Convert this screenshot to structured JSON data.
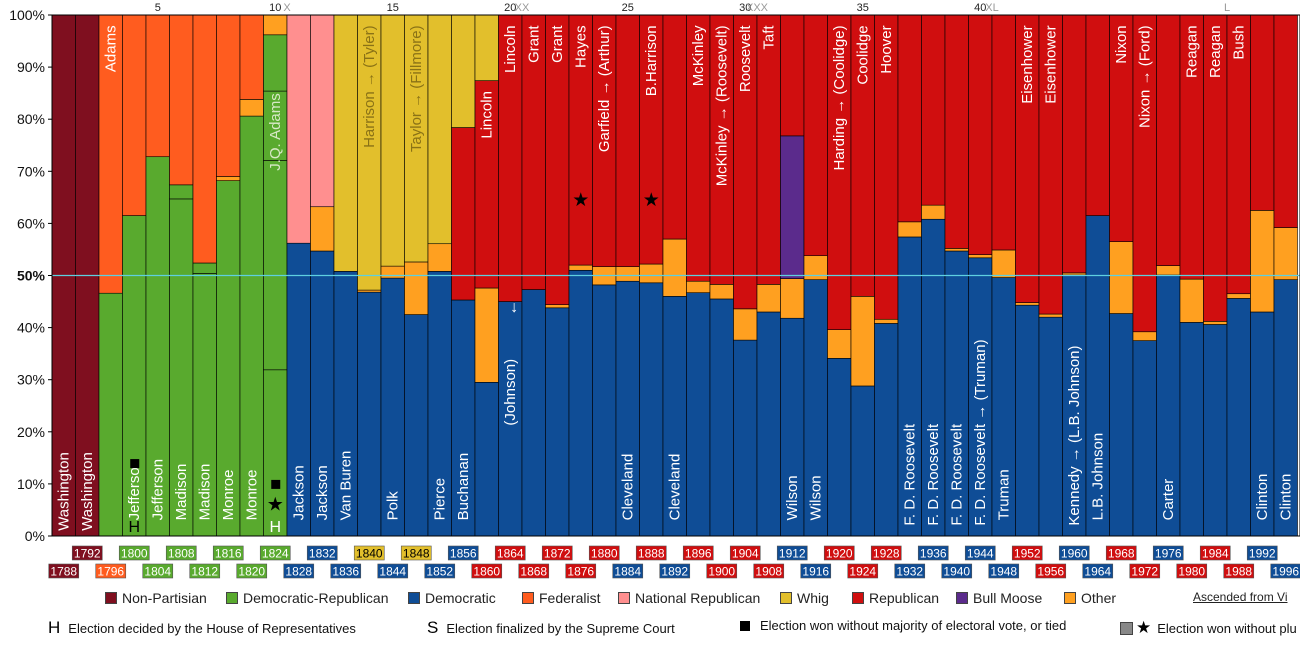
{
  "chart_data": {
    "type": "stacked-bar",
    "title": "",
    "xlabel": "",
    "ylabel": "",
    "ylim": [
      0,
      100
    ],
    "y_ticks": [
      "0%",
      "10%",
      "20%",
      "30%",
      "40%",
      "50%",
      "60%",
      "70%",
      "80%",
      "90%",
      "100%"
    ],
    "party_colors": {
      "NP": "#7f0f1f",
      "DR": "#59aa2e",
      "D": "#0f4d96",
      "F": "#ff5c1f",
      "NR": "#ff8f8f",
      "W": "#e2bf2c",
      "R": "#d00e0f",
      "BM": "#5b2b8c",
      "O": "#ffa020"
    },
    "top_numbers": [
      {
        "i": 4,
        "label": "5"
      },
      {
        "i": 9,
        "label": "10"
      },
      {
        "i": 14,
        "label": "15"
      },
      {
        "i": 19,
        "label": "20"
      },
      {
        "i": 24,
        "label": "25"
      },
      {
        "i": 29,
        "label": "30"
      },
      {
        "i": 34,
        "label": "35"
      },
      {
        "i": 39,
        "label": "40"
      }
    ],
    "top_roman": [
      {
        "i": 9.5,
        "label": "X"
      },
      {
        "i": 19.5,
        "label": "XX"
      },
      {
        "i": 29.5,
        "label": "XXX"
      },
      {
        "i": 39.5,
        "label": "XL"
      },
      {
        "i": 49.5,
        "label": "L"
      }
    ],
    "bars": [
      {
        "year": "1788",
        "w": "NP",
        "name": "Washington",
        "segs": [
          [
            "NP",
            100
          ]
        ]
      },
      {
        "year": "1792",
        "w": "NP",
        "name": "Washington",
        "segs": [
          [
            "NP",
            100
          ]
        ]
      },
      {
        "year": "1796",
        "w": "F",
        "name": "Adams",
        "segs": [
          [
            "DR",
            46.6
          ],
          [
            "F",
            53.4
          ]
        ]
      },
      {
        "year": "1800",
        "w": "DR",
        "name": "Jefferson",
        "mark": "square",
        "h": "H",
        "segs": [
          [
            "DR",
            61.5
          ],
          [
            "F",
            38.5
          ]
        ]
      },
      {
        "year": "1804",
        "w": "DR",
        "name": "Jefferson",
        "segs": [
          [
            "DR",
            72.8
          ],
          [
            "F",
            27.2
          ]
        ]
      },
      {
        "year": "1808",
        "w": "DR",
        "name": "Madison",
        "segs": [
          [
            "DR",
            64.7
          ],
          [
            "DR",
            2.7
          ],
          [
            "F",
            32.6
          ]
        ]
      },
      {
        "year": "1812",
        "w": "DR",
        "name": "Madison",
        "segs": [
          [
            "DR",
            50.4
          ],
          [
            "DR",
            2
          ],
          [
            "F",
            47.6
          ]
        ]
      },
      {
        "year": "1816",
        "w": "DR",
        "name": "Monroe",
        "segs": [
          [
            "DR",
            68.2
          ],
          [
            "O",
            0.8
          ],
          [
            "F",
            31
          ]
        ]
      },
      {
        "year": "1820",
        "w": "DR",
        "name": "Monroe",
        "segs": [
          [
            "DR",
            80.6
          ],
          [
            "O",
            3.2
          ],
          [
            "F",
            16.2
          ]
        ]
      },
      {
        "year": "1824",
        "w": "DR",
        "name": "J.Q. Adams",
        "mark": "square",
        "star": true,
        "h": "H",
        "segs": [
          [
            "DR",
            31.9
          ],
          [
            "DR",
            40.2
          ],
          [
            "DR",
            13.3
          ],
          [
            "DR",
            10.8
          ],
          [
            "O",
            3.8
          ]
        ]
      },
      {
        "year": "1828",
        "w": "D",
        "name": "Jackson",
        "segs": [
          [
            "D",
            56.2
          ],
          [
            "NR",
            43.8
          ]
        ]
      },
      {
        "year": "1832",
        "w": "D",
        "name": "Jackson",
        "segs": [
          [
            "D",
            54.7
          ],
          [
            "O",
            8.5
          ],
          [
            "NR",
            36.8
          ]
        ]
      },
      {
        "year": "1836",
        "w": "D",
        "name": "Van Buren",
        "segs": [
          [
            "D",
            50.8
          ],
          [
            "W",
            49.2
          ]
        ]
      },
      {
        "year": "1840",
        "w": "W",
        "name": "Harrison → (Tyler)",
        "segs": [
          [
            "D",
            46.8
          ],
          [
            "O",
            0.4
          ],
          [
            "W",
            52.8
          ]
        ]
      },
      {
        "year": "1844",
        "w": "D",
        "name": "Polk",
        "segs": [
          [
            "D",
            49.5
          ],
          [
            "O",
            2.3
          ],
          [
            "W",
            48.2
          ]
        ]
      },
      {
        "year": "1848",
        "w": "W",
        "name": "Taylor → (Fillmore)",
        "segs": [
          [
            "D",
            42.5
          ],
          [
            "O",
            10.1
          ],
          [
            "W",
            47.4
          ]
        ]
      },
      {
        "year": "1852",
        "w": "D",
        "name": "Pierce",
        "segs": [
          [
            "D",
            50.8
          ],
          [
            "O",
            5.3
          ],
          [
            "W",
            43.9
          ]
        ]
      },
      {
        "year": "1856",
        "w": "D",
        "name": "Buchanan",
        "segs": [
          [
            "D",
            45.3
          ],
          [
            "R",
            33.1
          ],
          [
            "W",
            21.6
          ]
        ]
      },
      {
        "year": "1860",
        "w": "R",
        "name": "Lincoln",
        "segs": [
          [
            "D",
            29.5
          ],
          [
            "O",
            18.1
          ],
          [
            "R",
            39.8
          ],
          [
            "W",
            12.6
          ]
        ]
      },
      {
        "year": "1864",
        "w": "R",
        "name": "Lincoln",
        "name2": "↓",
        "name3": "(Johnson)",
        "segs": [
          [
            "D",
            45
          ],
          [
            "R",
            55
          ]
        ]
      },
      {
        "year": "1868",
        "w": "R",
        "name": "Grant",
        "segs": [
          [
            "D",
            47.3
          ],
          [
            "R",
            52.7
          ]
        ]
      },
      {
        "year": "1872",
        "w": "R",
        "name": "Grant",
        "segs": [
          [
            "D",
            43.8
          ],
          [
            "O",
            0.6
          ],
          [
            "R",
            55.6
          ]
        ]
      },
      {
        "year": "1876",
        "w": "R",
        "name": "Hayes",
        "star": true,
        "segs": [
          [
            "D",
            51
          ],
          [
            "O",
            1
          ],
          [
            "R",
            48
          ]
        ]
      },
      {
        "year": "1880",
        "w": "R",
        "name": "Garfield → (Arthur)",
        "segs": [
          [
            "D",
            48.2
          ],
          [
            "O",
            3.5
          ],
          [
            "R",
            48.3
          ]
        ]
      },
      {
        "year": "1884",
        "w": "D",
        "name": "Cleveland",
        "segs": [
          [
            "D",
            48.9
          ],
          [
            "O",
            2.8
          ],
          [
            "R",
            48.3
          ]
        ]
      },
      {
        "year": "1888",
        "w": "R",
        "name": "B.Harrison",
        "star": true,
        "segs": [
          [
            "D",
            48.6
          ],
          [
            "O",
            3.6
          ],
          [
            "R",
            47.8
          ]
        ]
      },
      {
        "year": "1892",
        "w": "D",
        "name": "Cleveland",
        "segs": [
          [
            "D",
            46
          ],
          [
            "O",
            11
          ],
          [
            "R",
            43
          ]
        ]
      },
      {
        "year": "1896",
        "w": "R",
        "name": "McKinley",
        "segs": [
          [
            "D",
            46.7
          ],
          [
            "O",
            2.2
          ],
          [
            "R",
            51.1
          ]
        ]
      },
      {
        "year": "1900",
        "w": "R",
        "name": "McKinley → (Roosevelt)",
        "segs": [
          [
            "D",
            45.5
          ],
          [
            "O",
            2.8
          ],
          [
            "R",
            51.7
          ]
        ]
      },
      {
        "year": "1904",
        "w": "R",
        "name": "Roosevelt",
        "segs": [
          [
            "D",
            37.6
          ],
          [
            "O",
            6
          ],
          [
            "R",
            56.4
          ]
        ]
      },
      {
        "year": "1908",
        "w": "R",
        "name": "Taft",
        "segs": [
          [
            "D",
            43
          ],
          [
            "O",
            5.3
          ],
          [
            "R",
            51.7
          ]
        ]
      },
      {
        "year": "1912",
        "w": "D",
        "name": "Wilson",
        "segs": [
          [
            "D",
            41.8
          ],
          [
            "O",
            7.6
          ],
          [
            "BM",
            27.4
          ],
          [
            "R",
            23.2
          ]
        ]
      },
      {
        "year": "1916",
        "w": "D",
        "name": "Wilson",
        "segs": [
          [
            "D",
            49.2
          ],
          [
            "O",
            4.6
          ],
          [
            "R",
            46.2
          ]
        ]
      },
      {
        "year": "1920",
        "w": "R",
        "name": "Harding → (Coolidge)",
        "segs": [
          [
            "D",
            34.1
          ],
          [
            "O",
            5.5
          ],
          [
            "R",
            60.4
          ]
        ]
      },
      {
        "year": "1924",
        "w": "R",
        "name": "Coolidge",
        "segs": [
          [
            "D",
            28.8
          ],
          [
            "O",
            17.2
          ],
          [
            "R",
            54
          ]
        ]
      },
      {
        "year": "1928",
        "w": "R",
        "name": "Hoover",
        "segs": [
          [
            "D",
            40.8
          ],
          [
            "O",
            0.8
          ],
          [
            "R",
            58.4
          ]
        ]
      },
      {
        "year": "1932",
        "w": "D",
        "name": "F. D. Roosevelt",
        "segs": [
          [
            "D",
            57.4
          ],
          [
            "O",
            2.9
          ],
          [
            "R",
            39.7
          ]
        ]
      },
      {
        "year": "1936",
        "w": "D",
        "name": "F. D. Roosevelt",
        "segs": [
          [
            "D",
            60.8
          ],
          [
            "O",
            2.7
          ],
          [
            "R",
            36.5
          ]
        ]
      },
      {
        "year": "1940",
        "w": "D",
        "name": "F. D. Roosevelt",
        "segs": [
          [
            "D",
            54.7
          ],
          [
            "O",
            0.5
          ],
          [
            "R",
            44.8
          ]
        ]
      },
      {
        "year": "1944",
        "w": "D",
        "name": "F. D. Roosevelt → (Truman)",
        "segs": [
          [
            "D",
            53.4
          ],
          [
            "O",
            0.6
          ],
          [
            "R",
            46
          ]
        ]
      },
      {
        "year": "1948",
        "w": "D",
        "name": "Truman",
        "segs": [
          [
            "D",
            49.6
          ],
          [
            "O",
            5.3
          ],
          [
            "R",
            45.1
          ]
        ]
      },
      {
        "year": "1952",
        "w": "R",
        "name": "Eisenhower",
        "segs": [
          [
            "D",
            44.3
          ],
          [
            "O",
            0.5
          ],
          [
            "R",
            55.2
          ]
        ]
      },
      {
        "year": "1956",
        "w": "R",
        "name": "Eisenhower",
        "segs": [
          [
            "D",
            42
          ],
          [
            "O",
            0.6
          ],
          [
            "R",
            57.4
          ]
        ]
      },
      {
        "year": "1960",
        "w": "D",
        "name": "Kennedy → (L.B. Johnson)",
        "segs": [
          [
            "D",
            50.1
          ],
          [
            "O",
            0.4
          ],
          [
            "R",
            49.5
          ]
        ]
      },
      {
        "year": "1964",
        "w": "D",
        "name": "L.B. Johnson",
        "segs": [
          [
            "D",
            61.5
          ],
          [
            "R",
            38.5
          ]
        ]
      },
      {
        "year": "1968",
        "w": "R",
        "name": "Nixon",
        "segs": [
          [
            "D",
            42.7
          ],
          [
            "O",
            13.8
          ],
          [
            "R",
            43.5
          ]
        ]
      },
      {
        "year": "1972",
        "w": "R",
        "name": "Nixon → (Ford)",
        "segs": [
          [
            "D",
            37.5
          ],
          [
            "O",
            1.7
          ],
          [
            "R",
            60.8
          ]
        ]
      },
      {
        "year": "1976",
        "w": "D",
        "name": "Carter",
        "segs": [
          [
            "D",
            50.1
          ],
          [
            "O",
            1.8
          ],
          [
            "R",
            48.1
          ]
        ]
      },
      {
        "year": "1980",
        "w": "R",
        "name": "Reagan",
        "segs": [
          [
            "D",
            41
          ],
          [
            "O",
            8.3
          ],
          [
            "R",
            50.7
          ]
        ]
      },
      {
        "year": "1984",
        "w": "R",
        "name": "Reagan",
        "segs": [
          [
            "D",
            40.6
          ],
          [
            "O",
            0.6
          ],
          [
            "R",
            58.8
          ]
        ]
      },
      {
        "year": "1988",
        "w": "R",
        "name": "Bush",
        "segs": [
          [
            "D",
            45.6
          ],
          [
            "O",
            0.9
          ],
          [
            "R",
            53.5
          ]
        ]
      },
      {
        "year": "1992",
        "w": "D",
        "name": "Clinton",
        "segs": [
          [
            "D",
            43
          ],
          [
            "O",
            19.5
          ],
          [
            "R",
            37.5
          ]
        ]
      },
      {
        "year": "1996",
        "w": "D",
        "name": "Clinton",
        "segs": [
          [
            "D",
            49.2
          ],
          [
            "O",
            10
          ],
          [
            "R",
            40.8
          ]
        ]
      }
    ]
  },
  "legend": {
    "items": [
      {
        "key": "NP",
        "label": "Non-Partisian",
        "color": "#7f0f1f"
      },
      {
        "key": "DR",
        "label": "Democratic-Republican",
        "color": "#59aa2e"
      },
      {
        "key": "D",
        "label": "Democratic",
        "color": "#0f4d96"
      },
      {
        "key": "F",
        "label": "Federalist",
        "color": "#ff5c1f"
      },
      {
        "key": "NR",
        "label": "National Republican",
        "color": "#ff8f8f"
      },
      {
        "key": "W",
        "label": "Whig",
        "color": "#e2bf2c"
      },
      {
        "key": "R",
        "label": "Republican",
        "color": "#d00e0f"
      },
      {
        "key": "BM",
        "label": "Bull Moose",
        "color": "#5b2b8c"
      },
      {
        "key": "O",
        "label": "Other",
        "color": "#ffa020"
      }
    ],
    "ascended_label": "Ascended from Vi"
  },
  "notes": {
    "house": {
      "symbol": "H",
      "text": "Election decided by the House of Representatives"
    },
    "court": {
      "symbol": "S",
      "text": "Election finalized by the Supreme Court"
    },
    "no_majority": {
      "text": "Election won without majority of electoral vote, or tied"
    },
    "no_plurality": {
      "symbol": "★",
      "text": "Election won without plu"
    }
  }
}
